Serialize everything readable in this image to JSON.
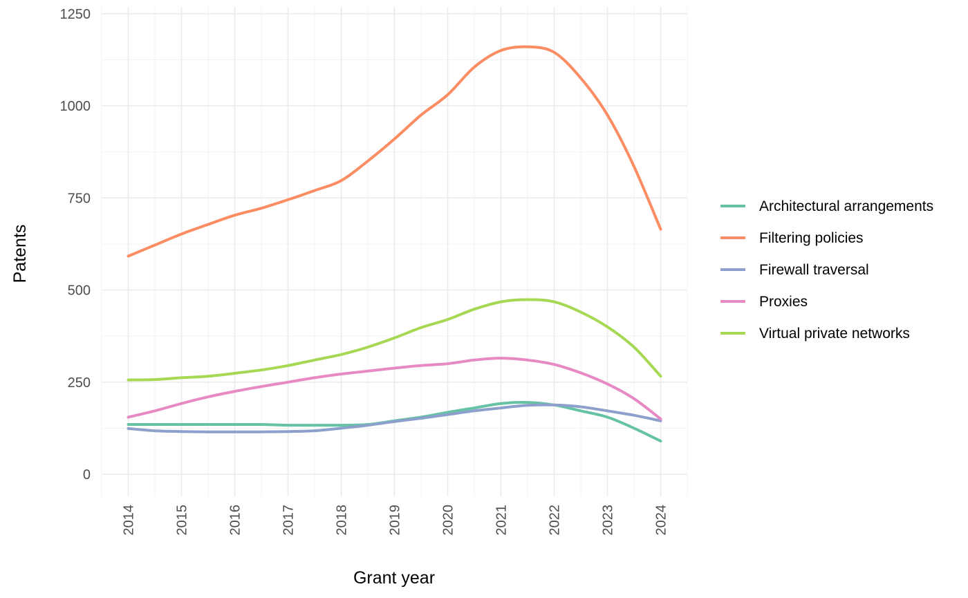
{
  "chart_data": {
    "type": "line",
    "title": "",
    "xlabel": "Grant year",
    "ylabel": "Patents",
    "xlim": [
      2013.5,
      2024.5
    ],
    "ylim": [
      -60,
      1260
    ],
    "x_ticks": [
      "2014",
      "2015",
      "2016",
      "2017",
      "2018",
      "2019",
      "2020",
      "2021",
      "2022",
      "2023",
      "2024"
    ],
    "y_ticks": [
      "0",
      "250",
      "500",
      "750",
      "1000",
      "1250"
    ],
    "grid": true,
    "legend_position": "right",
    "x": [
      2014,
      2014.5,
      2015,
      2015.5,
      2016,
      2016.5,
      2017,
      2017.5,
      2018,
      2018.5,
      2019,
      2019.5,
      2020,
      2020.5,
      2021,
      2021.5,
      2022,
      2022.5,
      2023,
      2023.5,
      2024
    ],
    "series": [
      {
        "name": "Architectural arrangements",
        "color": "#66c2a5",
        "values": [
          135,
          135,
          135,
          135,
          135,
          135,
          133,
          133,
          133,
          135,
          145,
          155,
          168,
          180,
          192,
          195,
          188,
          172,
          155,
          125,
          90
        ]
      },
      {
        "name": "Filtering policies",
        "color": "#fc8d62",
        "values": [
          592,
          622,
          652,
          678,
          703,
          722,
          745,
          770,
          797,
          850,
          910,
          975,
          1030,
          1105,
          1150,
          1160,
          1145,
          1075,
          975,
          835,
          665
        ]
      },
      {
        "name": "Firewall traversal",
        "color": "#8da0cb",
        "values": [
          124,
          118,
          116,
          115,
          115,
          115,
          116,
          118,
          125,
          133,
          143,
          152,
          162,
          172,
          180,
          187,
          188,
          183,
          172,
          160,
          145
        ]
      },
      {
        "name": "Proxies",
        "color": "#e78ac3",
        "values": [
          155,
          172,
          192,
          210,
          225,
          238,
          250,
          262,
          272,
          280,
          288,
          295,
          300,
          310,
          315,
          310,
          298,
          275,
          245,
          205,
          150
        ]
      },
      {
        "name": "Virtual private networks",
        "color": "#a6d854",
        "values": [
          256,
          257,
          262,
          266,
          274,
          283,
          295,
          310,
          325,
          345,
          370,
          398,
          420,
          448,
          468,
          474,
          468,
          440,
          400,
          345,
          266
        ]
      }
    ]
  }
}
